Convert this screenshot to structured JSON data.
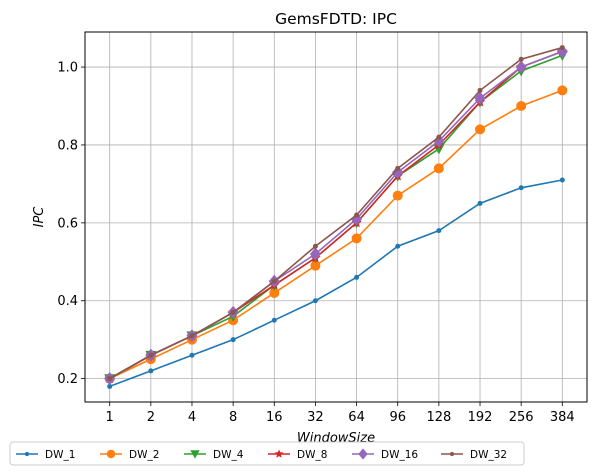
{
  "chart_data": {
    "type": "line",
    "title": "GemsFDTD: IPC",
    "xlabel": "WindowSize",
    "ylabel": "IPC",
    "categories": [
      "1",
      "2",
      "4",
      "8",
      "16",
      "32",
      "64",
      "96",
      "128",
      "192",
      "256",
      "384"
    ],
    "ylim": [
      0.14,
      1.09
    ],
    "yticks": [
      0.2,
      0.4,
      0.6,
      0.8,
      1.0
    ],
    "ytick_labels": [
      "0.2",
      "0.4",
      "0.6",
      "0.8",
      "1.0"
    ],
    "grid": true,
    "legend_position": "bottom",
    "series": [
      {
        "name": "DW_1",
        "color": "#1f77b4",
        "marker": "point",
        "values": [
          0.18,
          0.22,
          0.26,
          0.3,
          0.35,
          0.4,
          0.46,
          0.54,
          0.58,
          0.65,
          0.69,
          0.71
        ]
      },
      {
        "name": "DW_2",
        "color": "#ff7f0e",
        "marker": "circle",
        "values": [
          0.2,
          0.25,
          0.3,
          0.35,
          0.42,
          0.49,
          0.56,
          0.67,
          0.74,
          0.84,
          0.9,
          0.94
        ]
      },
      {
        "name": "DW_4",
        "color": "#2ca02c",
        "marker": "triangle-down",
        "values": [
          0.2,
          0.26,
          0.31,
          0.36,
          0.44,
          0.51,
          0.6,
          0.72,
          0.79,
          0.91,
          0.99,
          1.03
        ]
      },
      {
        "name": "DW_8",
        "color": "#d62728",
        "marker": "star",
        "values": [
          0.2,
          0.26,
          0.31,
          0.37,
          0.44,
          0.51,
          0.6,
          0.72,
          0.8,
          0.91,
          1.0,
          1.04
        ]
      },
      {
        "name": "DW_16",
        "color": "#9467bd",
        "marker": "diamond",
        "values": [
          0.2,
          0.26,
          0.31,
          0.37,
          0.45,
          0.52,
          0.61,
          0.73,
          0.81,
          0.92,
          1.0,
          1.04
        ]
      },
      {
        "name": "DW_32",
        "color": "#8c564b",
        "marker": "point",
        "values": [
          0.2,
          0.26,
          0.31,
          0.37,
          0.45,
          0.54,
          0.62,
          0.74,
          0.82,
          0.94,
          1.02,
          1.05
        ]
      }
    ]
  }
}
